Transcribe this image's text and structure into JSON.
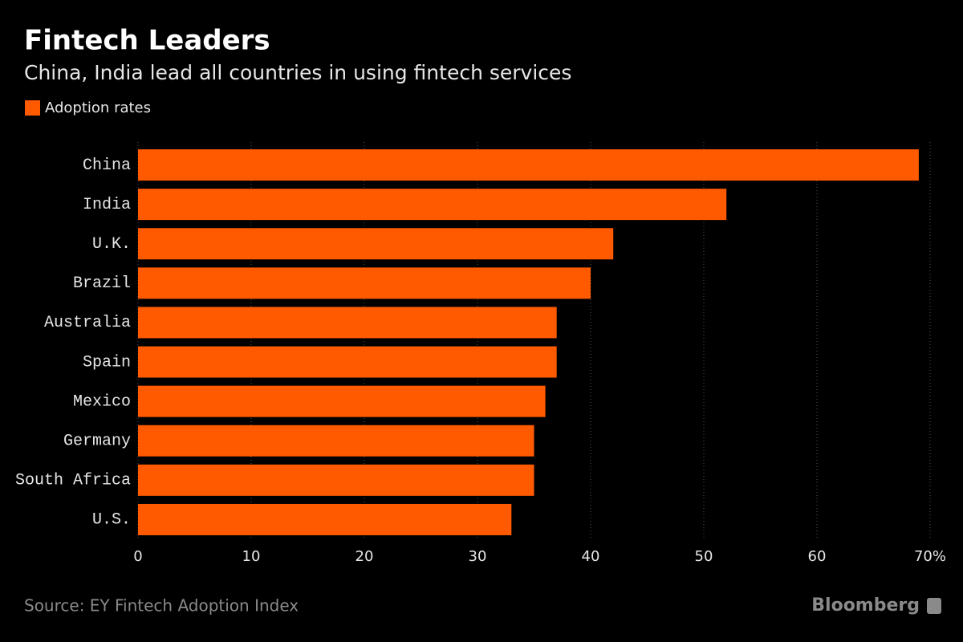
{
  "chart_data": {
    "type": "bar",
    "orientation": "horizontal",
    "title": "Fintech Leaders",
    "subtitle": "China, India lead all countries in using fintech services",
    "categories": [
      "China",
      "India",
      "U.K.",
      "Brazil",
      "Australia",
      "Spain",
      "Mexico",
      "Germany",
      "South Africa",
      "U.S."
    ],
    "series": [
      {
        "name": "Adoption rates",
        "color": "#ff5a00",
        "values": [
          69,
          52,
          42,
          40,
          37,
          37,
          36,
          35,
          35,
          33
        ]
      }
    ],
    "xlim": [
      0,
      70
    ],
    "xticks": [
      0,
      10,
      20,
      30,
      40,
      50,
      60,
      {
        "value": 70,
        "label": "70%"
      }
    ],
    "grid": true,
    "source": "Source: EY Fintech Adoption Index",
    "brand": "Bloomberg"
  }
}
